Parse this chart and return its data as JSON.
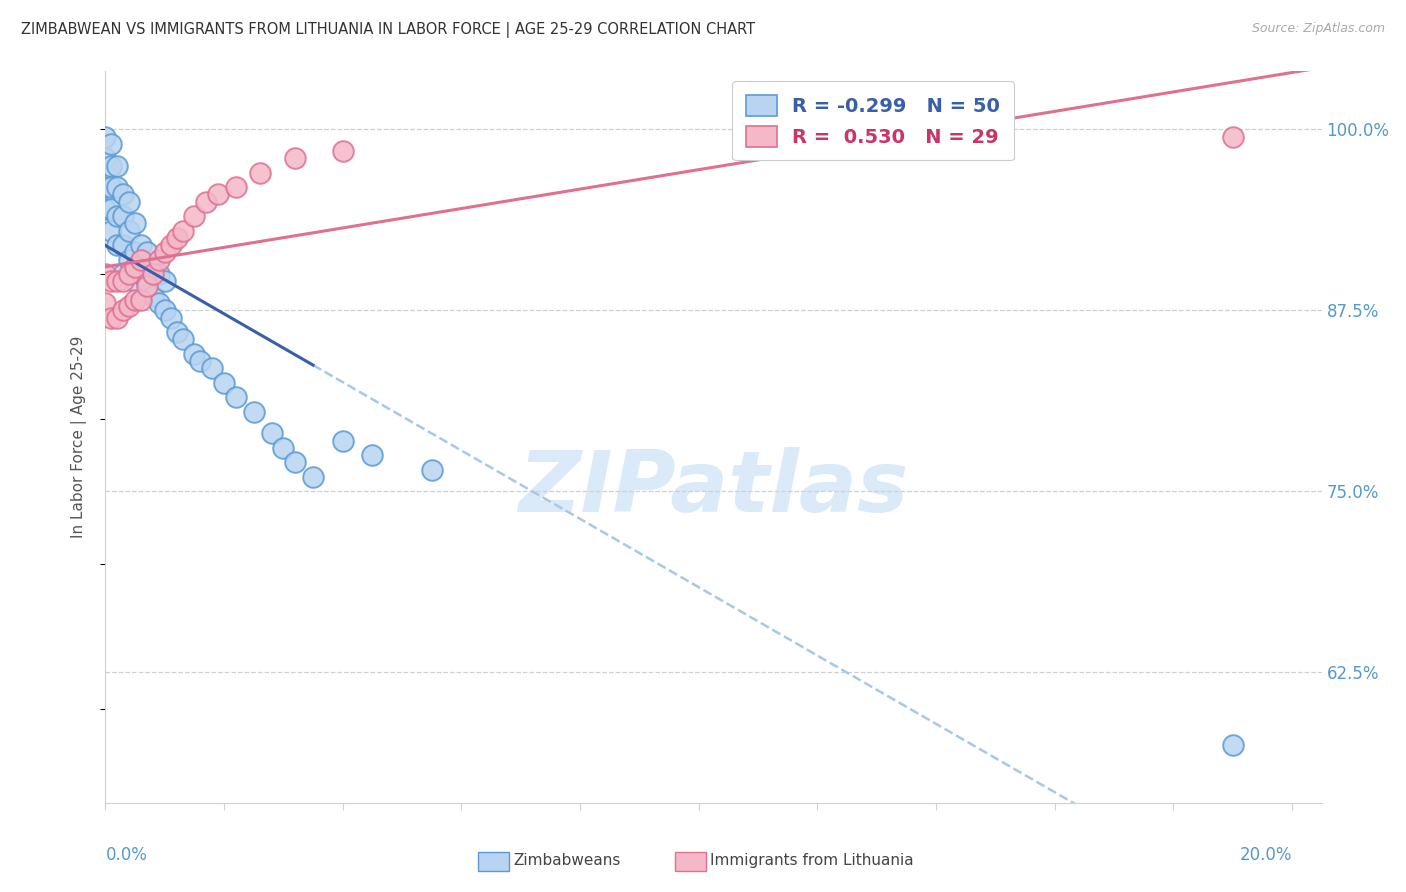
{
  "title": "ZIMBABWEAN VS IMMIGRANTS FROM LITHUANIA IN LABOR FORCE | AGE 25-29 CORRELATION CHART",
  "source": "Source: ZipAtlas.com",
  "ylabel": "In Labor Force | Age 25-29",
  "series1_label": "Zimbabweans",
  "series2_label": "Immigrants from Lithuania",
  "series1_R": "-0.299",
  "series1_N": "50",
  "series2_R": "0.530",
  "series2_N": "29",
  "series1_face": "#b8d4f0",
  "series1_edge": "#5b9bd5",
  "series2_face": "#f4b8c8",
  "series2_edge": "#e07090",
  "trend1_color": "#3a5faa",
  "trend1_dash_color": "#a8c8e8",
  "trend2_color": "#e07090",
  "bg_color": "#ffffff",
  "grid_color": "#d0d0d0",
  "title_color": "#333333",
  "axis_label_color": "#5599cc",
  "ylabel_color": "#555555",
  "legend_color1": "#3a5faa",
  "legend_color2": "#cc3366",
  "watermark": "ZIPatlas",
  "watermark_color": "#daeaf8",
  "xmin": 0.0,
  "xmax": 0.205,
  "ymin": 0.535,
  "ymax": 1.04,
  "ytick_vals": [
    0.625,
    0.75,
    0.875,
    1.0
  ],
  "ytick_labels": [
    "62.5%",
    "75.0%",
    "87.5%",
    "100.0%"
  ],
  "xtick_left_label": "0.0%",
  "xtick_right_label": "20.0%",
  "zim_x": [
    0.0,
    0.0,
    0.0,
    0.0,
    0.001,
    0.001,
    0.001,
    0.001,
    0.001,
    0.002,
    0.002,
    0.002,
    0.002,
    0.003,
    0.003,
    0.003,
    0.003,
    0.004,
    0.004,
    0.004,
    0.005,
    0.005,
    0.005,
    0.006,
    0.006,
    0.007,
    0.007,
    0.008,
    0.008,
    0.009,
    0.009,
    0.01,
    0.01,
    0.011,
    0.012,
    0.013,
    0.015,
    0.016,
    0.018,
    0.02,
    0.022,
    0.025,
    0.028,
    0.03,
    0.032,
    0.035,
    0.04,
    0.045,
    0.055,
    0.19
  ],
  "zim_y": [
    0.995,
    0.98,
    0.96,
    0.945,
    0.99,
    0.975,
    0.96,
    0.945,
    0.93,
    0.975,
    0.96,
    0.94,
    0.92,
    0.955,
    0.94,
    0.92,
    0.9,
    0.95,
    0.93,
    0.91,
    0.935,
    0.915,
    0.895,
    0.92,
    0.9,
    0.915,
    0.895,
    0.905,
    0.885,
    0.9,
    0.88,
    0.895,
    0.875,
    0.87,
    0.86,
    0.855,
    0.845,
    0.84,
    0.835,
    0.825,
    0.815,
    0.805,
    0.79,
    0.78,
    0.77,
    0.76,
    0.785,
    0.775,
    0.765,
    0.575
  ],
  "lit_x": [
    0.0,
    0.0,
    0.001,
    0.001,
    0.002,
    0.002,
    0.003,
    0.003,
    0.004,
    0.004,
    0.005,
    0.005,
    0.006,
    0.006,
    0.007,
    0.008,
    0.009,
    0.01,
    0.011,
    0.012,
    0.013,
    0.015,
    0.017,
    0.019,
    0.022,
    0.026,
    0.032,
    0.04,
    0.19
  ],
  "lit_y": [
    0.88,
    0.9,
    0.87,
    0.895,
    0.87,
    0.895,
    0.875,
    0.895,
    0.878,
    0.9,
    0.882,
    0.905,
    0.882,
    0.91,
    0.892,
    0.9,
    0.91,
    0.915,
    0.92,
    0.925,
    0.93,
    0.94,
    0.95,
    0.955,
    0.96,
    0.97,
    0.98,
    0.985,
    0.995
  ],
  "zim_trend_solid_end": 0.035,
  "marker_size": 220
}
